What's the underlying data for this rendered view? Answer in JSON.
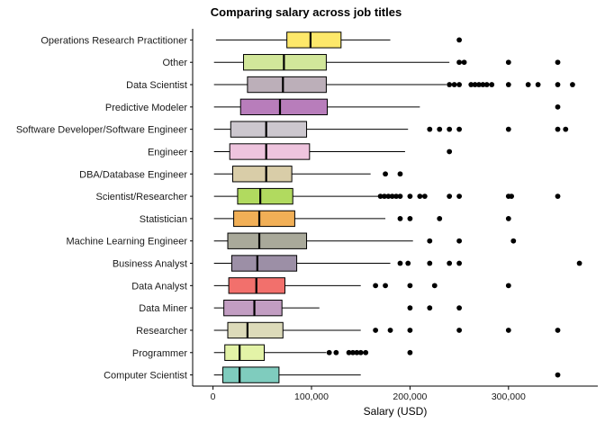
{
  "chart_data": {
    "type": "boxplot",
    "title": "Comparing salary across job titles",
    "xlabel": "Salary (USD)",
    "ylabel": "",
    "xlim": [
      -17000,
      387000
    ],
    "xticks": [
      0,
      100000,
      200000,
      300000
    ],
    "xtick_labels": [
      "0",
      "100,000",
      "200,000",
      "300,000"
    ],
    "grid": false,
    "legend": "none",
    "categories": [
      {
        "name": "Operations Research Practitioner",
        "color": "#FDE86A",
        "min": 3000,
        "q1": 75000,
        "median": 99000,
        "q3": 130000,
        "max": 180000,
        "outliers": [
          250000
        ]
      },
      {
        "name": "Other",
        "color": "#D2E79A",
        "min": 1000,
        "q1": 31000,
        "median": 72000,
        "q3": 115000,
        "max": 240000,
        "outliers": [
          250000,
          255000,
          300000,
          350000
        ]
      },
      {
        "name": "Data Scientist",
        "color": "#BCAFB9",
        "min": 1000,
        "q1": 35000,
        "median": 71000,
        "q3": 115000,
        "max": 237000,
        "outliers": [
          240000,
          245000,
          250000,
          262000,
          266000,
          270000,
          274000,
          278000,
          283000,
          300000,
          320000,
          330000,
          350000,
          365000
        ]
      },
      {
        "name": "Predictive Modeler",
        "color": "#B87DBB",
        "min": 1000,
        "q1": 28000,
        "median": 68000,
        "q3": 116000,
        "max": 210000,
        "outliers": [
          350000
        ]
      },
      {
        "name": "Software Developer/Software Engineer",
        "color": "#CCC7CE",
        "min": 1000,
        "q1": 18000,
        "median": 54000,
        "q3": 95000,
        "max": 198000,
        "outliers": [
          220000,
          230000,
          240000,
          250000,
          300000,
          350000,
          358000
        ]
      },
      {
        "name": "Engineer",
        "color": "#EEC4DE",
        "min": 1000,
        "q1": 17000,
        "median": 54000,
        "q3": 98000,
        "max": 195000,
        "outliers": [
          240000
        ]
      },
      {
        "name": "DBA/Database Engineer",
        "color": "#D9CDA8",
        "min": 1000,
        "q1": 20000,
        "median": 54000,
        "q3": 80000,
        "max": 160000,
        "outliers": [
          175000,
          190000
        ]
      },
      {
        "name": "Scientist/Researcher",
        "color": "#B1DA5F",
        "min": 1000,
        "q1": 25000,
        "median": 48000,
        "q3": 81000,
        "max": 168000,
        "outliers": [
          170000,
          174000,
          178000,
          182000,
          186000,
          190000,
          200000,
          210000,
          215000,
          240000,
          250000,
          300000,
          303000,
          350000
        ]
      },
      {
        "name": "Statistician",
        "color": "#F1AF56",
        "min": 1000,
        "q1": 21000,
        "median": 47000,
        "q3": 83000,
        "max": 175000,
        "outliers": [
          190000,
          200000,
          230000,
          300000
        ]
      },
      {
        "name": "Machine Learning Engineer",
        "color": "#A9A99A",
        "min": 1000,
        "q1": 15000,
        "median": 47000,
        "q3": 95000,
        "max": 203000,
        "outliers": [
          220000,
          250000,
          305000
        ]
      },
      {
        "name": "Business Analyst",
        "color": "#9C8FA6",
        "min": 1000,
        "q1": 19000,
        "median": 45000,
        "q3": 85000,
        "max": 180000,
        "outliers": [
          190000,
          198000,
          220000,
          240000,
          250000,
          372000
        ]
      },
      {
        "name": "Data Analyst",
        "color": "#F2706C",
        "min": 1000,
        "q1": 16000,
        "median": 44000,
        "q3": 73000,
        "max": 150000,
        "outliers": [
          165000,
          175000,
          200000,
          225000,
          300000
        ]
      },
      {
        "name": "Data Miner",
        "color": "#C29DC2",
        "min": 1000,
        "q1": 11000,
        "median": 42000,
        "q3": 70000,
        "max": 108000,
        "outliers": [
          200000,
          220000,
          250000
        ]
      },
      {
        "name": "Researcher",
        "color": "#DCDAB9",
        "min": 1000,
        "q1": 15000,
        "median": 35000,
        "q3": 71000,
        "max": 150000,
        "outliers": [
          165000,
          180000,
          200000,
          250000,
          300000,
          350000
        ]
      },
      {
        "name": "Programmer",
        "color": "#E3F3A7",
        "min": 1000,
        "q1": 12000,
        "median": 27000,
        "q3": 52000,
        "max": 115000,
        "outliers": [
          118000,
          125000,
          138000,
          142000,
          146000,
          150000,
          155000,
          200000
        ]
      },
      {
        "name": "Computer Scientist",
        "color": "#7FCCBE",
        "min": 1000,
        "q1": 10000,
        "median": 27000,
        "q3": 67000,
        "max": 150000,
        "outliers": [
          350000
        ]
      }
    ]
  }
}
